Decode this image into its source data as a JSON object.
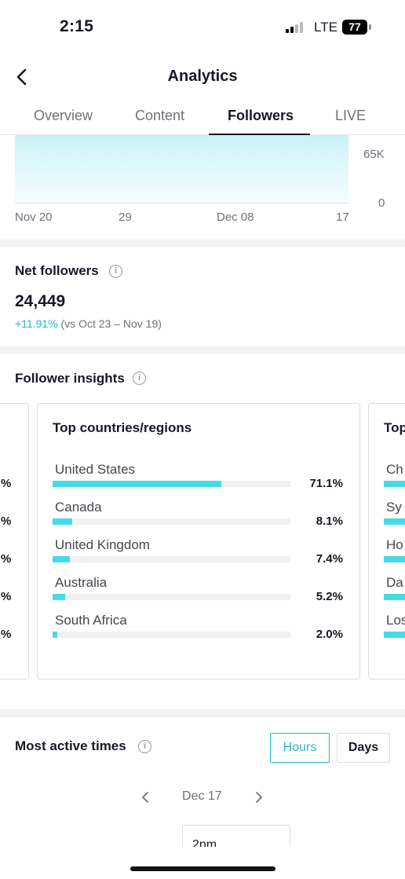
{
  "status_bar": {
    "time": "2:15",
    "network": "LTE",
    "battery": "77"
  },
  "header": {
    "title": "Analytics"
  },
  "tabs": [
    {
      "label": "Overview",
      "active": false
    },
    {
      "label": "Content",
      "active": false
    },
    {
      "label": "Followers",
      "active": true
    },
    {
      "label": "LIVE",
      "active": false
    }
  ],
  "followers_chart": {
    "y_ticks": [
      "65K",
      "0"
    ],
    "x_ticks": [
      "Nov 20",
      "29",
      "Dec 08",
      "17"
    ]
  },
  "net_followers": {
    "title": "Net followers",
    "value": "24,449",
    "change": "+11.91%",
    "comparison": "(vs Oct 23 – Nov 19)"
  },
  "follower_insights": {
    "title": "Follower insights",
    "cards": [
      {
        "title": "Top countries/regions",
        "rows": [
          {
            "label": "United States",
            "pct": "71.1%",
            "value": 71.1
          },
          {
            "label": "Canada",
            "pct": "8.1%",
            "value": 8.1
          },
          {
            "label": "United Kingdom",
            "pct": "7.4%",
            "value": 7.4
          },
          {
            "label": "Australia",
            "pct": "5.2%",
            "value": 5.2
          },
          {
            "label": "South Africa",
            "pct": "2.0%",
            "value": 2.0
          }
        ]
      }
    ],
    "left_card_peek": [
      "%",
      "%",
      "%",
      "%",
      "%"
    ],
    "right_card_peek": {
      "title": "Top",
      "labels": [
        "Ch",
        "Sy",
        "Ho",
        "Da",
        "Los"
      ]
    }
  },
  "most_active_times": {
    "title": "Most active times",
    "hours_label": "Hours",
    "days_label": "Days",
    "date": "Dec 17",
    "hour": "2pm"
  },
  "colors": {
    "accent": "#20b8c7",
    "bar": "#44dbe9"
  }
}
